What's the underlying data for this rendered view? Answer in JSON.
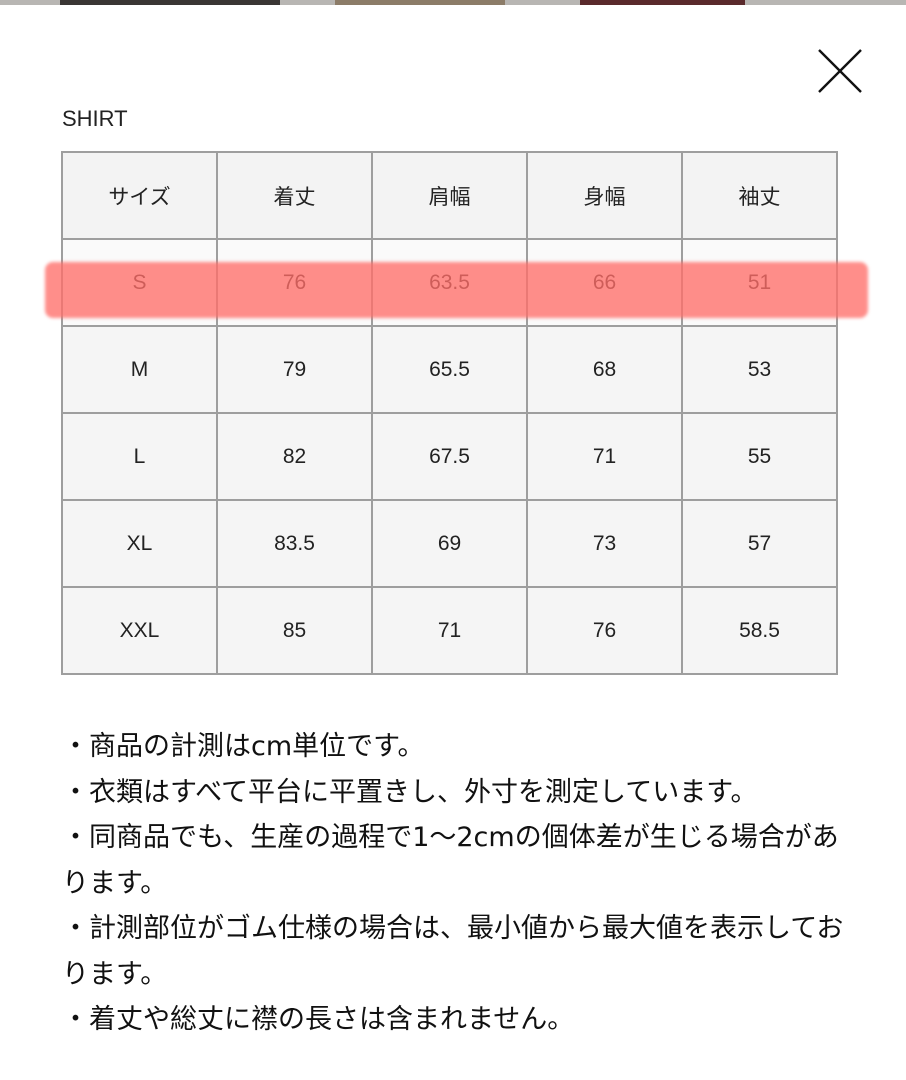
{
  "modal": {
    "title": "SHIRT",
    "close_icon": "close-x-icon",
    "highlight_color": "#ff8a85",
    "highlighted_row": "S"
  },
  "table": {
    "headers": [
      "サイズ",
      "着丈",
      "肩幅",
      "身幅",
      "袖丈"
    ],
    "rows": [
      [
        "S",
        "76",
        "63.5",
        "66",
        "51"
      ],
      [
        "M",
        "79",
        "65.5",
        "68",
        "53"
      ],
      [
        "L",
        "82",
        "67.5",
        "71",
        "55"
      ],
      [
        "XL",
        "83.5",
        "69",
        "73",
        "57"
      ],
      [
        "XXL",
        "85",
        "71",
        "76",
        "58.5"
      ]
    ]
  },
  "notes": [
    "・商品の計測はcm単位です。",
    "・衣類はすべて平台に平置きし、外寸を測定しています。",
    "・同商品でも、生産の過程で1〜2cmの個体差が生じる場合があります。",
    "・計測部位がゴム仕様の場合は、最小値から最大値を表示しております。",
    "・着丈や総丈に襟の長さは含まれません。"
  ]
}
